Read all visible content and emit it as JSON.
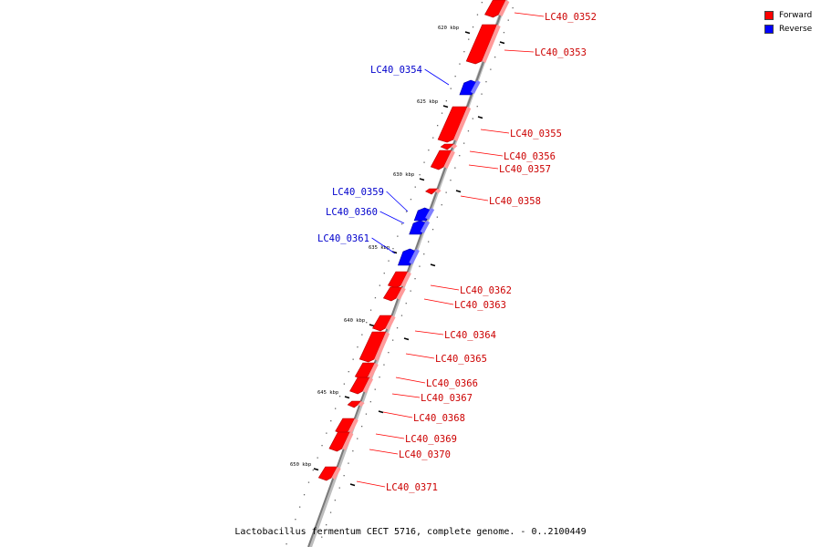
{
  "legend": {
    "forward_label": "Forward",
    "reverse_label": "Reverse",
    "forward_color": "#ff0000",
    "reverse_color": "#0000ff"
  },
  "caption": "Lactobacillus fermentum CECT 5716, complete genome. - 0..2100449",
  "scale_labels": [
    "620 kbp",
    "625 kbp",
    "630 kbp",
    "635 kbp",
    "640 kbp",
    "645 kbp",
    "650 kbp"
  ],
  "genes": [
    {
      "id": "LC40_0352",
      "strand": "forward"
    },
    {
      "id": "LC40_0353",
      "strand": "forward"
    },
    {
      "id": "LC40_0354",
      "strand": "reverse"
    },
    {
      "id": "LC40_0355",
      "strand": "forward"
    },
    {
      "id": "LC40_0356",
      "strand": "forward"
    },
    {
      "id": "LC40_0357",
      "strand": "forward"
    },
    {
      "id": "LC40_0358",
      "strand": "forward"
    },
    {
      "id": "LC40_0359",
      "strand": "reverse"
    },
    {
      "id": "LC40_0360",
      "strand": "reverse"
    },
    {
      "id": "LC40_0361",
      "strand": "reverse"
    },
    {
      "id": "LC40_0362",
      "strand": "forward"
    },
    {
      "id": "LC40_0363",
      "strand": "forward"
    },
    {
      "id": "LC40_0364",
      "strand": "forward"
    },
    {
      "id": "LC40_0365",
      "strand": "forward"
    },
    {
      "id": "LC40_0366",
      "strand": "forward"
    },
    {
      "id": "LC40_0367",
      "strand": "forward"
    },
    {
      "id": "LC40_0368",
      "strand": "forward"
    },
    {
      "id": "LC40_0369",
      "strand": "forward"
    },
    {
      "id": "LC40_0370",
      "strand": "forward"
    },
    {
      "id": "LC40_0371",
      "strand": "forward"
    }
  ]
}
